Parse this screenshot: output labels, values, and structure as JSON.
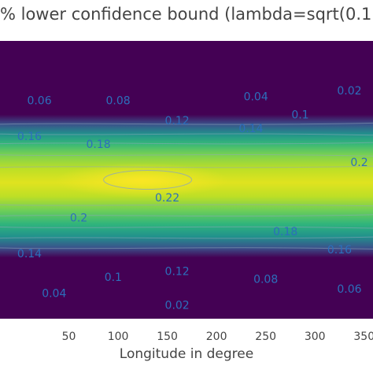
{
  "chart_data": {
    "type": "heatmap",
    "title": "% lower confidence bound (lambda=sqrt(0.1",
    "xlabel": "Longitude in degree",
    "ylabel": "",
    "x_ticks": [
      50,
      100,
      150,
      200,
      250,
      300,
      350
    ],
    "xlim": [
      0,
      360
    ],
    "colorscale": "viridis",
    "color_min": "#440154",
    "color_max": "#fde725",
    "contour_color": "#2c6fbb",
    "contour_labels": [
      {
        "text": "0.06",
        "lon": 20,
        "lat": 0.46
      },
      {
        "text": "0.08",
        "lon": 100,
        "lat": 0.46
      },
      {
        "text": "0.04",
        "lon": 240,
        "lat": 0.45
      },
      {
        "text": "0.02",
        "lon": 335,
        "lat": 0.435
      },
      {
        "text": "0.1",
        "lon": 285,
        "lat": 0.495
      },
      {
        "text": "0.12",
        "lon": 160,
        "lat": 0.51
      },
      {
        "text": "0.14",
        "lon": 235,
        "lat": 0.53
      },
      {
        "text": "0.16",
        "lon": 10,
        "lat": 0.55
      },
      {
        "text": "0.18",
        "lon": 80,
        "lat": 0.57
      },
      {
        "text": "0.2",
        "lon": 345,
        "lat": 0.615
      },
      {
        "text": "0.22",
        "lon": 150,
        "lat": 0.705
      },
      {
        "text": "0.2",
        "lon": 60,
        "lat": 0.755
      },
      {
        "text": "0.18",
        "lon": 270,
        "lat": 0.79
      },
      {
        "text": "0.16",
        "lon": 325,
        "lat": 0.835
      },
      {
        "text": "0.14",
        "lon": 10,
        "lat": 0.845
      },
      {
        "text": "0.12",
        "lon": 160,
        "lat": 0.89
      },
      {
        "text": "0.1",
        "lon": 95,
        "lat": 0.905
      },
      {
        "text": "0.08",
        "lon": 250,
        "lat": 0.91
      },
      {
        "text": "0.06",
        "lon": 335,
        "lat": 0.935
      },
      {
        "text": "0.04",
        "lon": 35,
        "lat": 0.945
      },
      {
        "text": "0.02",
        "lon": 160,
        "lat": 0.975
      }
    ]
  }
}
